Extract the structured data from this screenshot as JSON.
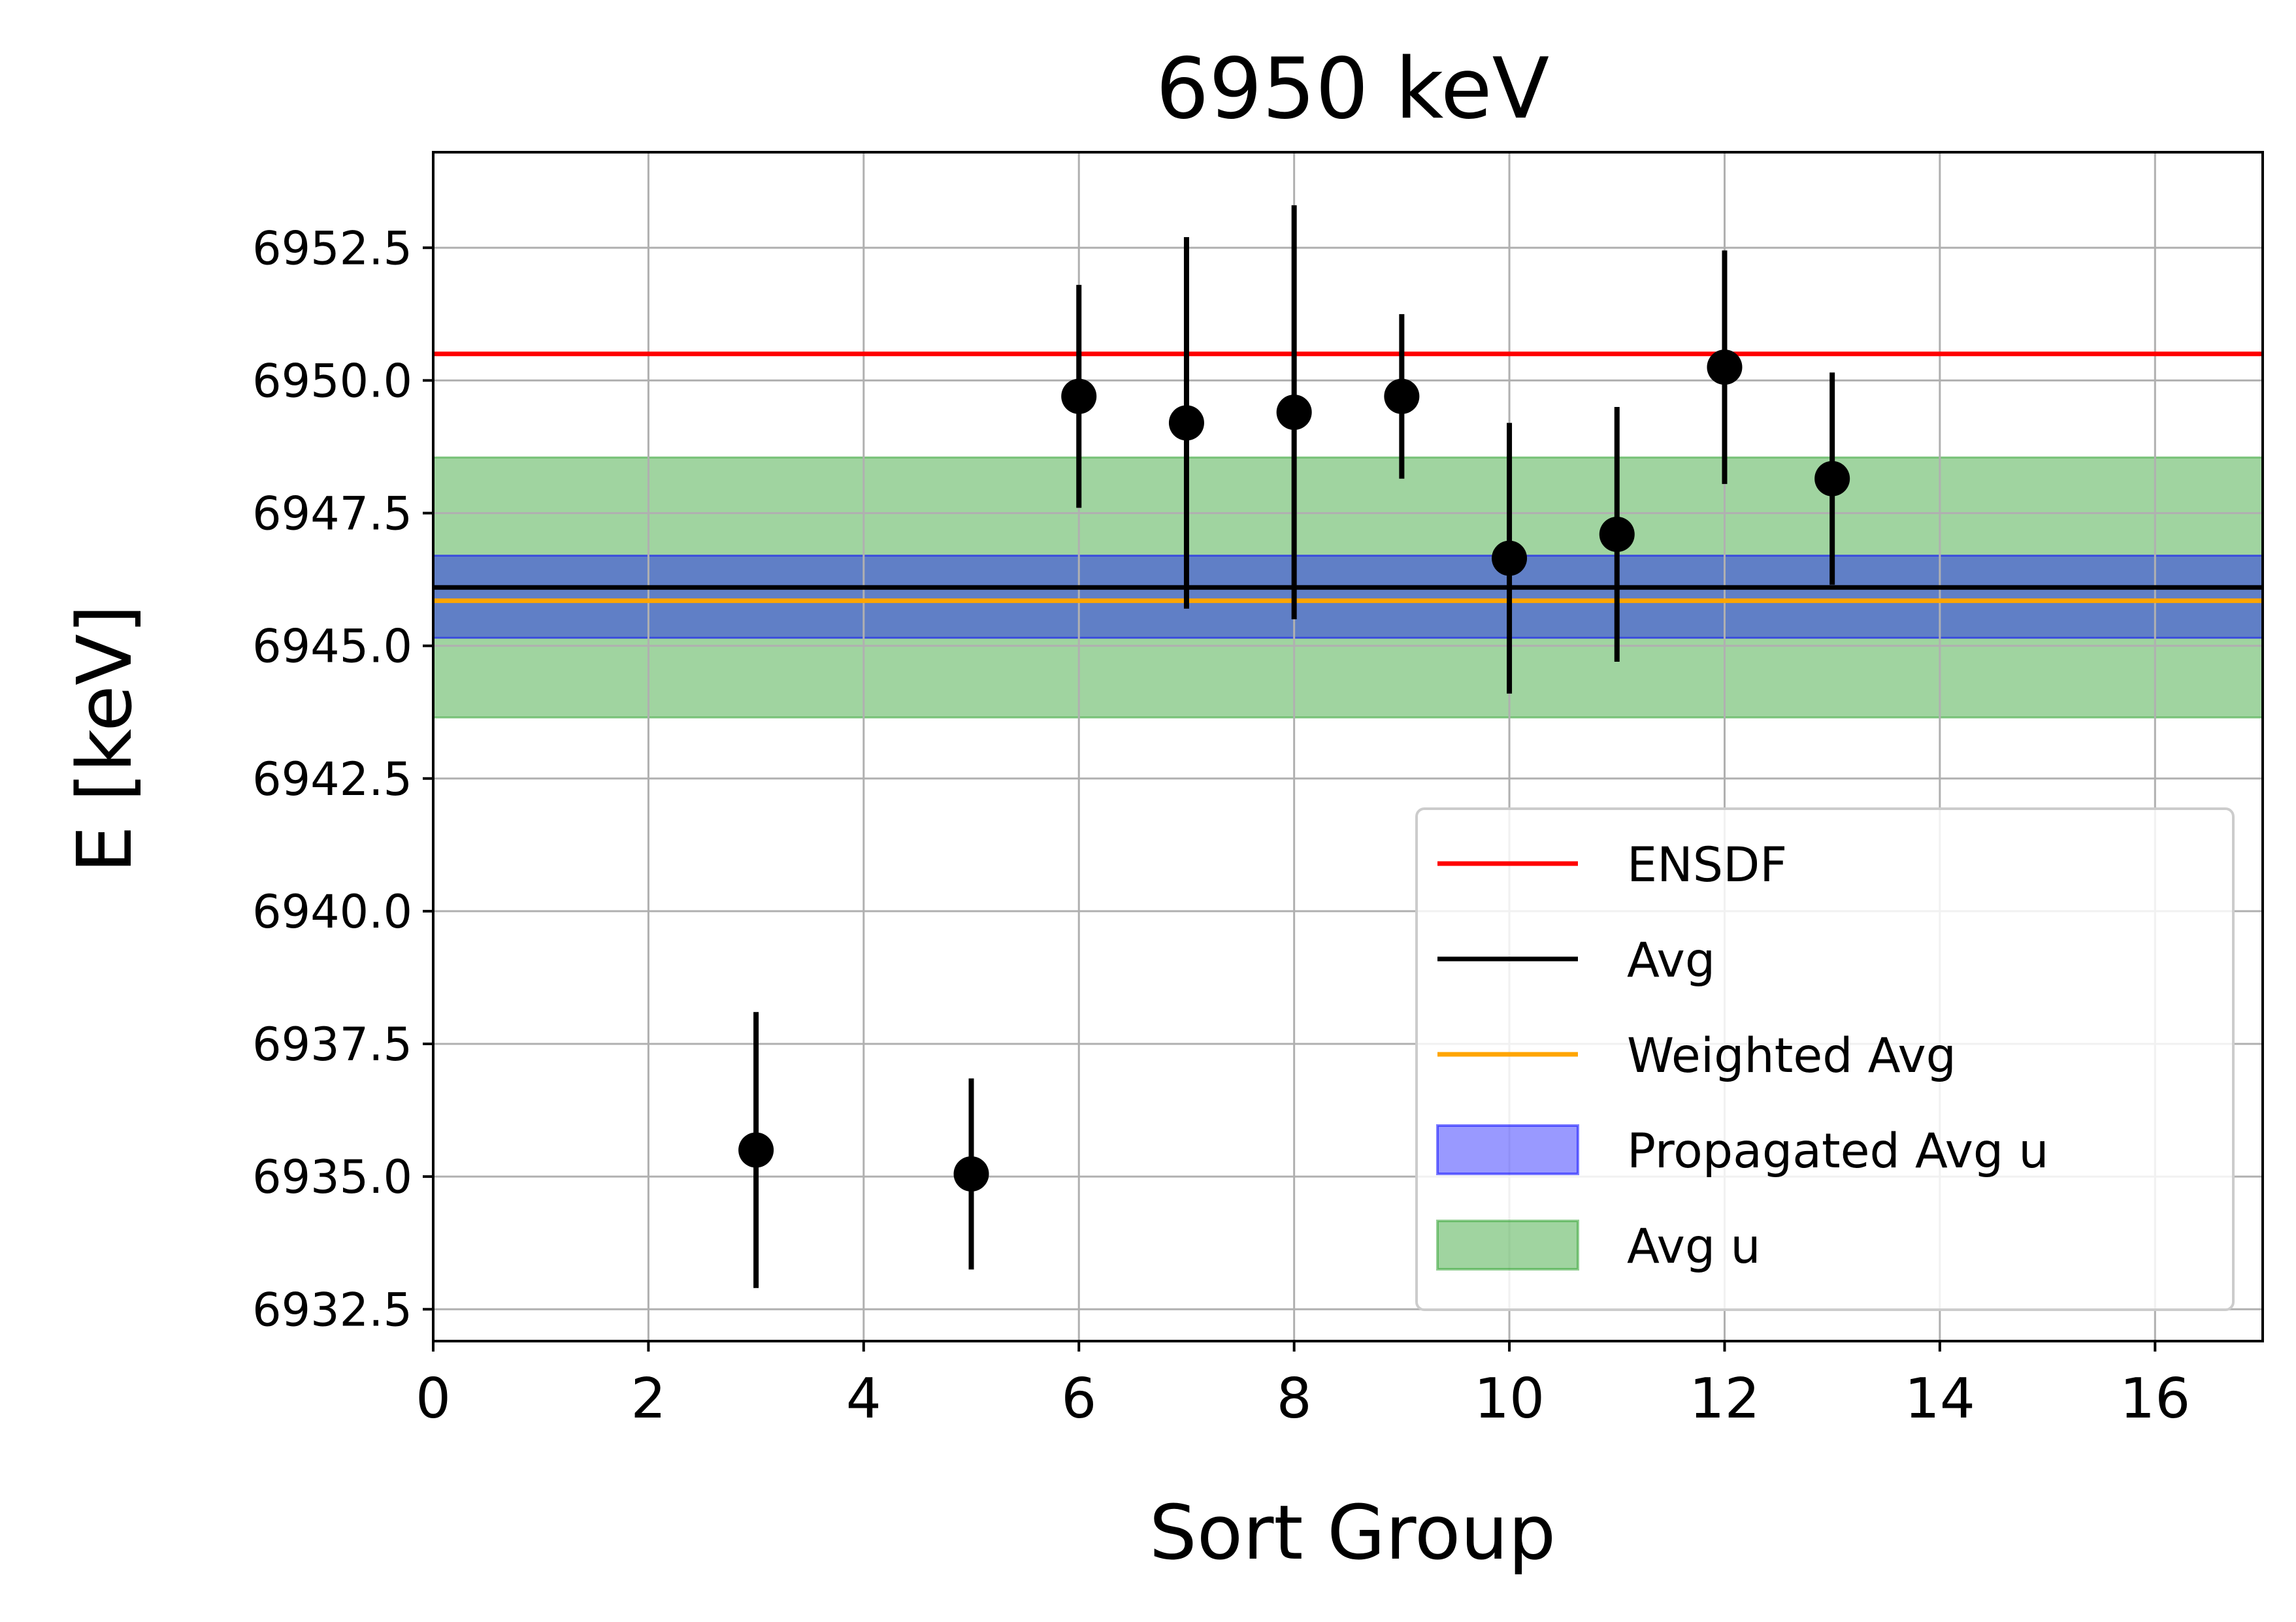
{
  "chart_data": {
    "type": "scatter",
    "title": "6950 keV",
    "xlabel": "Sort Group",
    "ylabel": "E [keV]",
    "xlim": [
      0,
      17
    ],
    "ylim": [
      6931.9,
      6954.3
    ],
    "xticks": [
      0,
      2,
      4,
      6,
      8,
      10,
      12,
      14,
      16
    ],
    "yticks": [
      6932.5,
      6935.0,
      6937.5,
      6940.0,
      6942.5,
      6945.0,
      6947.5,
      6950.0,
      6952.5
    ],
    "xtick_labels": [
      "0",
      "2",
      "4",
      "6",
      "8",
      "10",
      "12",
      "14",
      "16"
    ],
    "ytick_labels": [
      "6932.5",
      "6935.0",
      "6937.5",
      "6940.0",
      "6942.5",
      "6945.0",
      "6947.5",
      "6950.0",
      "6952.5"
    ],
    "grid": true,
    "legend_position": "lower-right",
    "points": [
      {
        "x": 3,
        "y": 6935.5,
        "err": 2.6
      },
      {
        "x": 5,
        "y": 6935.05,
        "err": 1.8
      },
      {
        "x": 6,
        "y": 6949.7,
        "err": 2.1
      },
      {
        "x": 7,
        "y": 6949.2,
        "err": 3.5
      },
      {
        "x": 8,
        "y": 6949.4,
        "err": 3.9
      },
      {
        "x": 9,
        "y": 6949.7,
        "err": 1.55
      },
      {
        "x": 10,
        "y": 6946.65,
        "err": 2.55
      },
      {
        "x": 11,
        "y": 6947.1,
        "err": 2.4
      },
      {
        "x": 12,
        "y": 6950.25,
        "err": 2.2
      },
      {
        "x": 13,
        "y": 6948.15,
        "err": 2.0
      }
    ],
    "lines": [
      {
        "name": "ENSDF",
        "y": 6950.5,
        "color": "#ff0000"
      },
      {
        "name": "Avg",
        "y": 6946.1,
        "color": "#000000"
      },
      {
        "name": "Weighted Avg",
        "y": 6945.85,
        "color": "#ffa500"
      }
    ],
    "bands": [
      {
        "name": "Propagated Avg u",
        "y_low": 6945.15,
        "y_high": 6946.7,
        "color": "#0000ff"
      },
      {
        "name": "Avg u",
        "y_low": 6943.65,
        "y_high": 6948.55,
        "color": "#2ca02c"
      }
    ],
    "legend": [
      "ENSDF",
      "Avg",
      "Weighted Avg",
      "Propagated Avg u",
      "Avg u"
    ]
  }
}
